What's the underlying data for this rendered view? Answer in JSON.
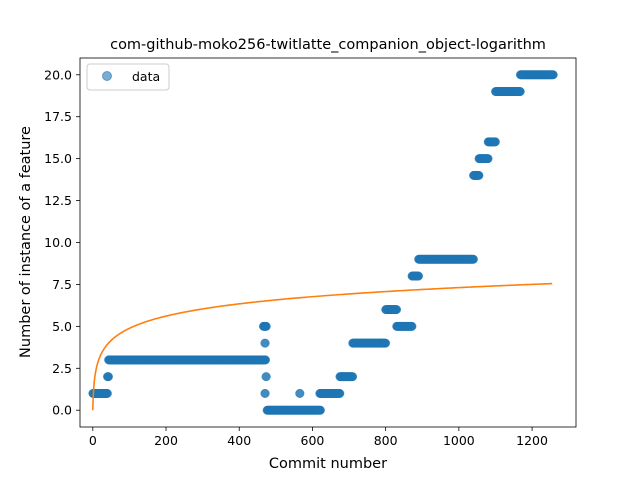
{
  "chart_data": {
    "type": "scatter",
    "title": "com-github-moko256-twitlatte_companion_object-logarithm",
    "xlabel": "Commit number",
    "ylabel": "Number of instance of a feature",
    "xlim": [
      -35,
      1320
    ],
    "ylim": [
      -1,
      21
    ],
    "xticks": [
      0,
      200,
      400,
      600,
      800,
      1000,
      1200
    ],
    "yticks": [
      0.0,
      2.5,
      5.0,
      7.5,
      10.0,
      12.5,
      15.0,
      17.5,
      20.0
    ],
    "xtick_labels": [
      "0",
      "200",
      "400",
      "600",
      "800",
      "1000",
      "1200"
    ],
    "ytick_labels": [
      "0.0",
      "2.5",
      "5.0",
      "7.5",
      "10.0",
      "12.5",
      "15.0",
      "17.5",
      "20.0"
    ],
    "grid": false,
    "legend": {
      "position": "top-left",
      "entries": [
        "data"
      ]
    },
    "colors": {
      "data": "#1f77b4",
      "fit": "#ff7f0e"
    },
    "series": [
      {
        "name": "data",
        "kind": "scatter",
        "segments": [
          {
            "x_start": 0,
            "x_end": 40,
            "y": 1
          },
          {
            "x_start": 40,
            "x_end": 43,
            "y": 2
          },
          {
            "x_start": 43,
            "x_end": 472,
            "y": 3
          },
          {
            "x_start": 466,
            "x_end": 474,
            "y": 5
          },
          {
            "x_start": 470,
            "x_end": 471,
            "y": 4
          },
          {
            "x_start": 470,
            "x_end": 471,
            "y": 1
          },
          {
            "x_start": 473,
            "x_end": 474,
            "y": 2
          },
          {
            "x_start": 476,
            "x_end": 622,
            "y": 0
          },
          {
            "x_start": 565,
            "x_end": 566,
            "y": 1
          },
          {
            "x_start": 620,
            "x_end": 675,
            "y": 1
          },
          {
            "x_start": 675,
            "x_end": 710,
            "y": 2
          },
          {
            "x_start": 710,
            "x_end": 800,
            "y": 4
          },
          {
            "x_start": 800,
            "x_end": 830,
            "y": 6
          },
          {
            "x_start": 830,
            "x_end": 872,
            "y": 5
          },
          {
            "x_start": 872,
            "x_end": 890,
            "y": 8
          },
          {
            "x_start": 890,
            "x_end": 1040,
            "y": 9
          },
          {
            "x_start": 1040,
            "x_end": 1055,
            "y": 14
          },
          {
            "x_start": 1055,
            "x_end": 1080,
            "y": 15
          },
          {
            "x_start": 1080,
            "x_end": 1100,
            "y": 16
          },
          {
            "x_start": 1100,
            "x_end": 1168,
            "y": 19
          },
          {
            "x_start": 1168,
            "x_end": 1258,
            "y": 20
          }
        ]
      },
      {
        "kind": "line",
        "function": "y = a * ln(x + 1)",
        "x_range": [
          0,
          1255
        ],
        "y_at_x_end": 7.55
      }
    ]
  }
}
